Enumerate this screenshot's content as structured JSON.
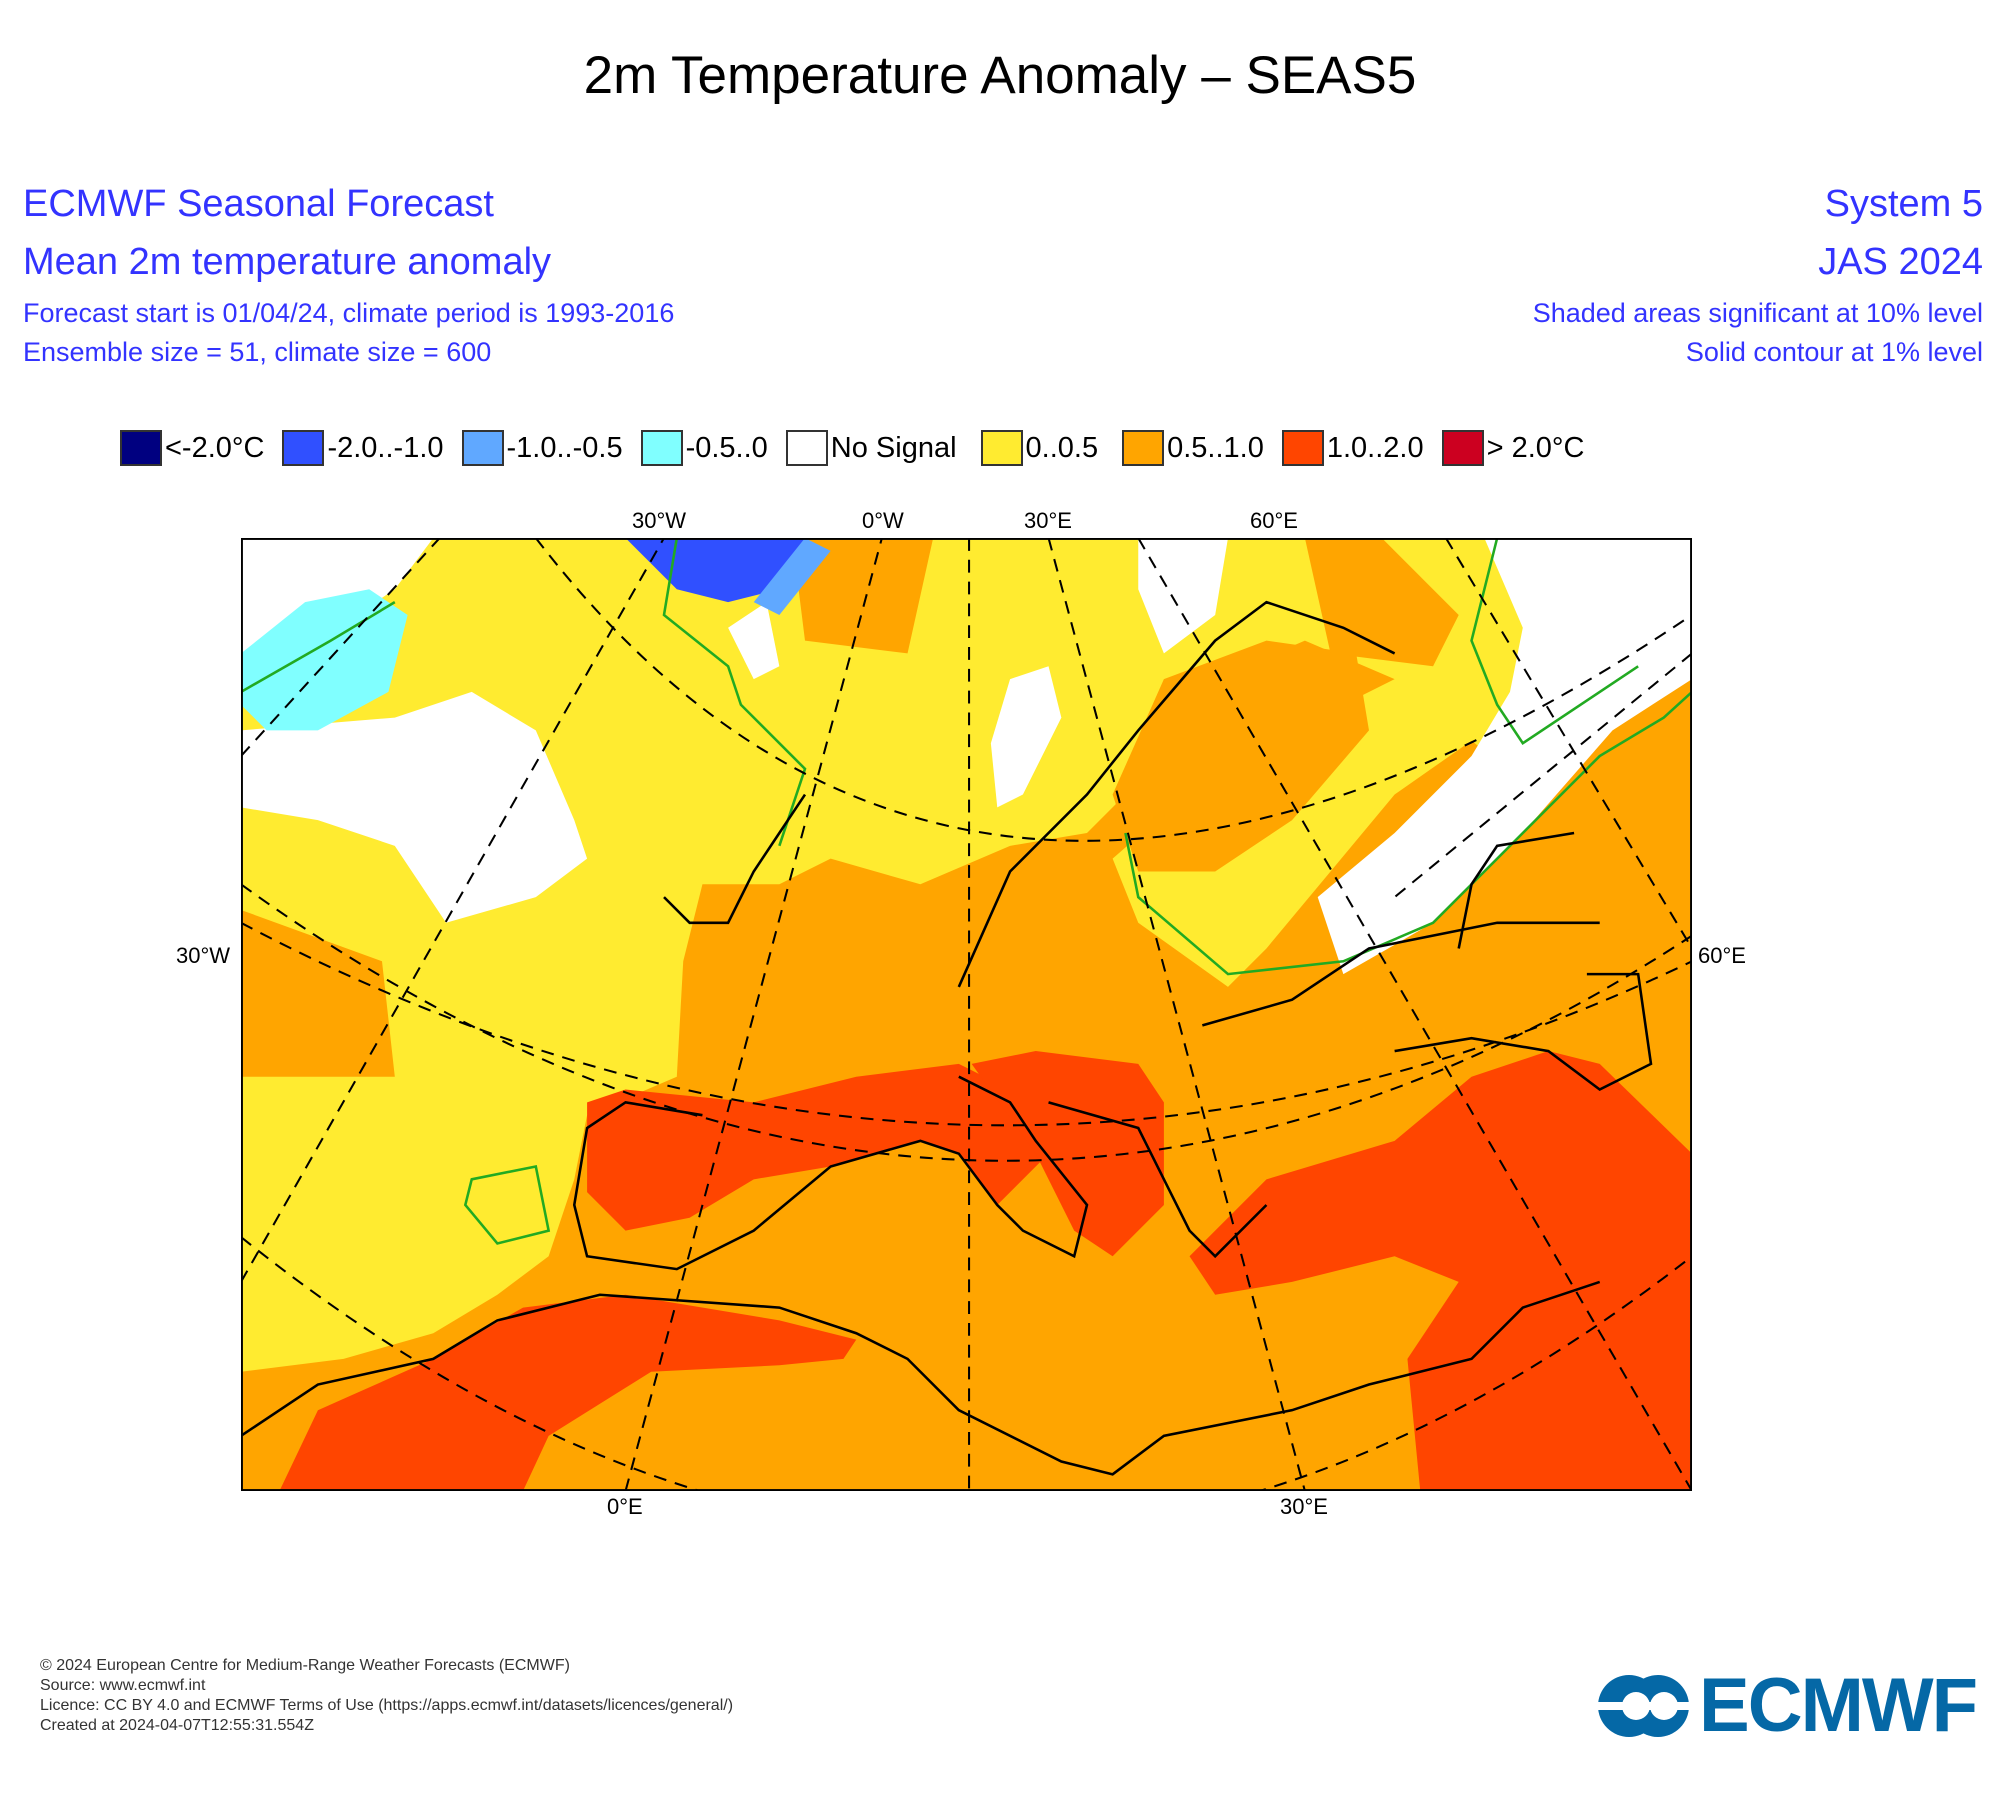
{
  "title": "2m Temperature Anomaly – SEAS5",
  "header": {
    "left": [
      "ECMWF Seasonal Forecast",
      "Mean 2m temperature anomaly",
      "Forecast start is 01/04/24, climate period is 1993-2016",
      "Ensemble size = 51, climate size = 600"
    ],
    "right": [
      "System 5",
      "JAS 2024",
      "Shaded areas significant at 10% level",
      "Solid contour at 1% level"
    ]
  },
  "legend": [
    {
      "label": "<-2.0°C",
      "color": "#000080"
    },
    {
      "label": "-2.0..-1.0",
      "color": "#3050ff"
    },
    {
      "label": "-1.0..-0.5",
      "color": "#60a8ff"
    },
    {
      "label": "-0.5..0",
      "color": "#80ffff"
    },
    {
      "label": "No Signal",
      "color": "#ffffff"
    },
    {
      "label": "0..0.5",
      "color": "#ffeb30"
    },
    {
      "label": "0.5..1.0",
      "color": "#ffa500"
    },
    {
      "label": "1.0..2.0",
      "color": "#ff4500"
    },
    {
      "label": "> 2.0°C",
      "color": "#cc0020"
    }
  ],
  "axes": {
    "top": [
      "30°W",
      "0°W",
      "30°E",
      "60°E"
    ],
    "left": "30°W",
    "right": "60°E",
    "bottom": [
      "0°E",
      "30°E"
    ]
  },
  "footer": [
    "© 2024 European Centre for Medium-Range Weather Forecasts (ECMWF)",
    "Source: www.ecmwf.int",
    "Licence: CC BY 4.0 and ECMWF Terms of Use (https://apps.ecmwf.int/datasets/licences/general/)",
    "Created at 2024-04-07T12:55:31.554Z"
  ],
  "logo": "ECMWF"
}
